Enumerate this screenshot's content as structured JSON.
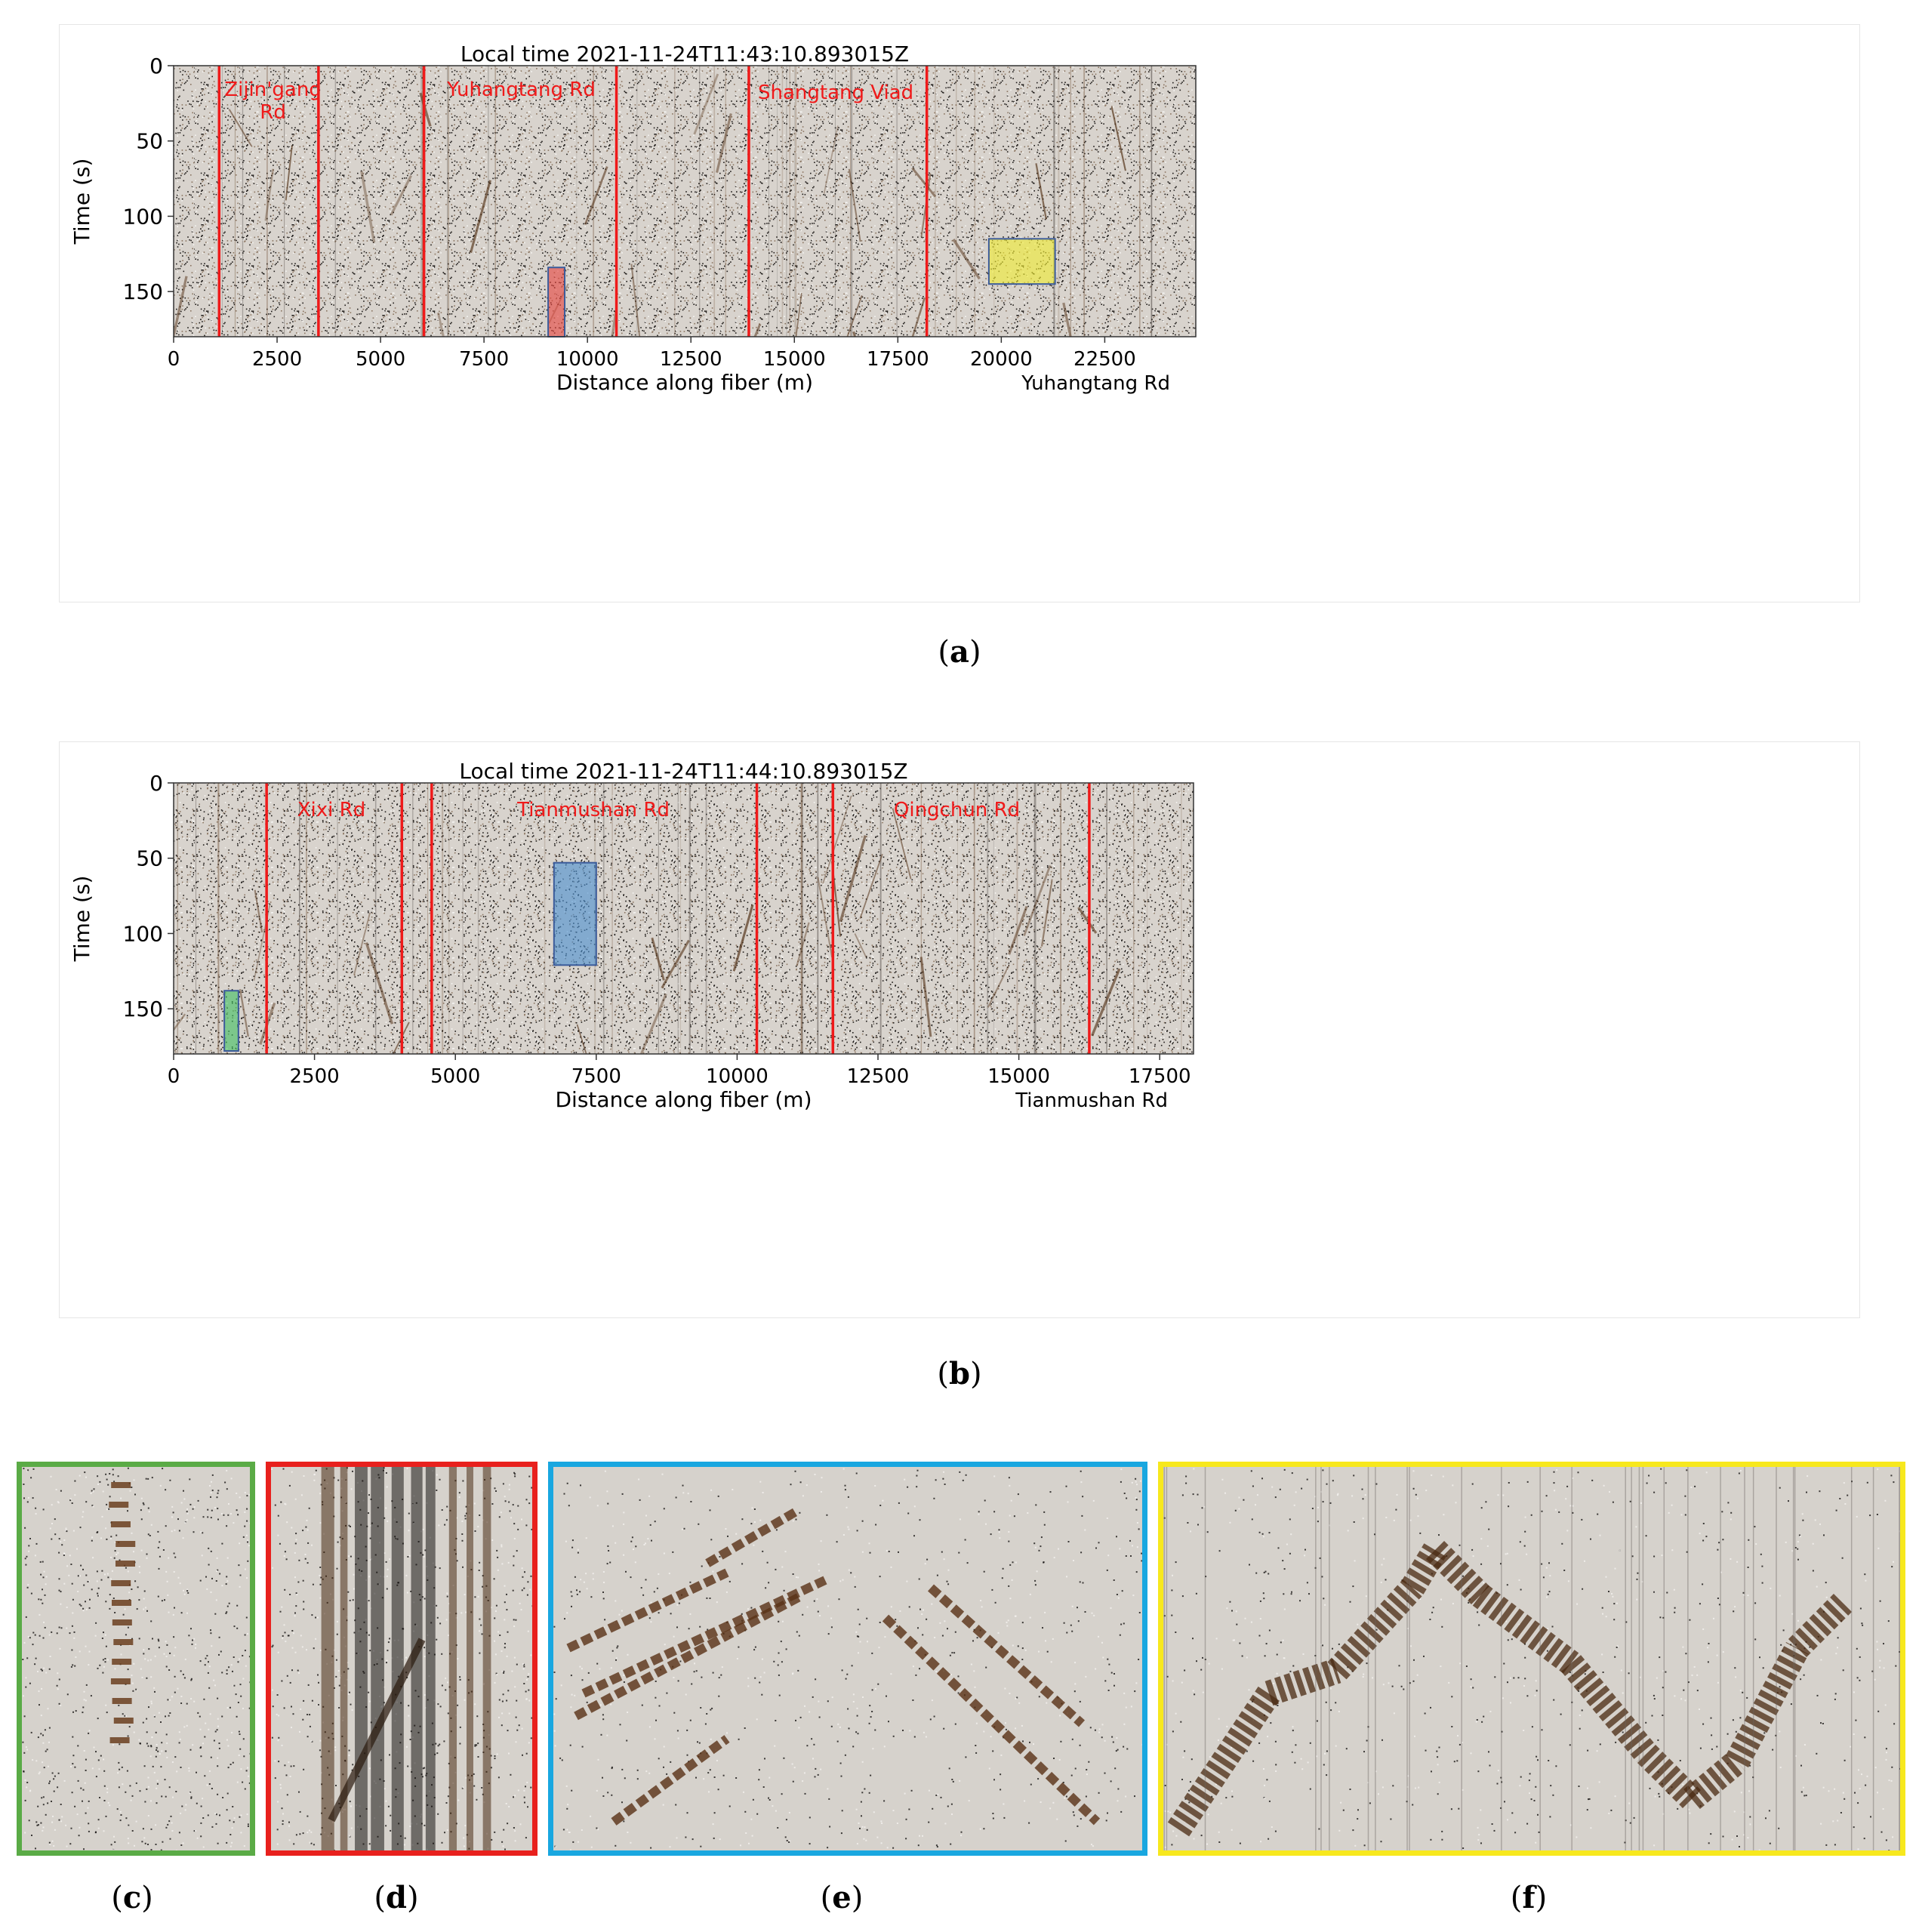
{
  "figure": {
    "panels": [
      {
        "id": "a",
        "caption_letter": "a",
        "title": "Local time 2021-11-24T11:43:10.893015Z",
        "xlabel": "Distance along fiber (m)",
        "ylabel": "Time (s)",
        "corner_label": "Yuhangtang Rd",
        "xlim": [
          0,
          24700
        ],
        "ylim": [
          180,
          0
        ],
        "xticks": [
          "0",
          "2500",
          "5000",
          "7500",
          "10000",
          "12500",
          "15000",
          "17500",
          "20000",
          "22500"
        ],
        "xtick_values": [
          0,
          2500,
          5000,
          7500,
          10000,
          12500,
          15000,
          17500,
          20000,
          22500
        ],
        "yticks": [
          "0",
          "50",
          "100",
          "150"
        ],
        "ytick_values": [
          0,
          50,
          100,
          150
        ],
        "road_boundaries_m": [
          1100,
          3500,
          6050,
          10700,
          13900,
          18200
        ],
        "road_labels": [
          {
            "lines": [
              "Zijin'gang",
              "Rd"
            ],
            "x_m": 2400,
            "t_s": 10
          },
          {
            "lines": [
              "Yuhangtang  Rd"
            ],
            "x_m": 8400,
            "t_s": 10
          },
          {
            "lines": [
              "Shangtang Viad"
            ],
            "x_m": 16000,
            "t_s": 12
          }
        ],
        "boxes": [
          {
            "color": "#e8413a",
            "x_m": [
              9050,
              9450
            ],
            "t_s": [
              134,
              180
            ]
          },
          {
            "color": "#f2ef2e",
            "x_m": [
              19700,
              21300
            ],
            "t_s": [
              115,
              145
            ]
          }
        ]
      },
      {
        "id": "b",
        "caption_letter": "b",
        "title": "Local time 2021-11-24T11:44:10.893015Z",
        "xlabel": "Distance along fiber (m)",
        "ylabel": "Time (s)",
        "corner_label": "Tianmushan Rd",
        "xlim": [
          0,
          18100
        ],
        "ylim": [
          180,
          0
        ],
        "xticks": [
          "0",
          "2500",
          "5000",
          "7500",
          "10000",
          "12500",
          "15000",
          "17500"
        ],
        "xtick_values": [
          0,
          2500,
          5000,
          7500,
          10000,
          12500,
          15000,
          17500
        ],
        "yticks": [
          "0",
          "50",
          "100",
          "150"
        ],
        "ytick_values": [
          0,
          50,
          100,
          150
        ],
        "road_boundaries_m": [
          1650,
          4050,
          4580,
          10350,
          11700,
          16250
        ],
        "road_labels": [
          {
            "lines": [
              "Xixi  Rd"
            ],
            "x_m": 2800,
            "t_s": 12
          },
          {
            "lines": [
              "Tianmushan  Rd"
            ],
            "x_m": 7450,
            "t_s": 12
          },
          {
            "lines": [
              "Qingchun  Rd"
            ],
            "x_m": 13900,
            "t_s": 12
          }
        ],
        "boxes": [
          {
            "color": "#4a90d0",
            "x_m": [
              6750,
              7500
            ],
            "t_s": [
              53,
              121
            ]
          },
          {
            "color": "#3fbf5f",
            "x_m": [
              900,
              1150
            ],
            "t_s": [
              138,
              178
            ]
          }
        ]
      }
    ],
    "zooms": [
      {
        "letter": "c",
        "border": "#5aab46"
      },
      {
        "letter": "d",
        "border": "#e8201d"
      },
      {
        "letter": "e",
        "border": "#19a7e0"
      },
      {
        "letter": "f",
        "border": "#f7e81d"
      }
    ]
  }
}
